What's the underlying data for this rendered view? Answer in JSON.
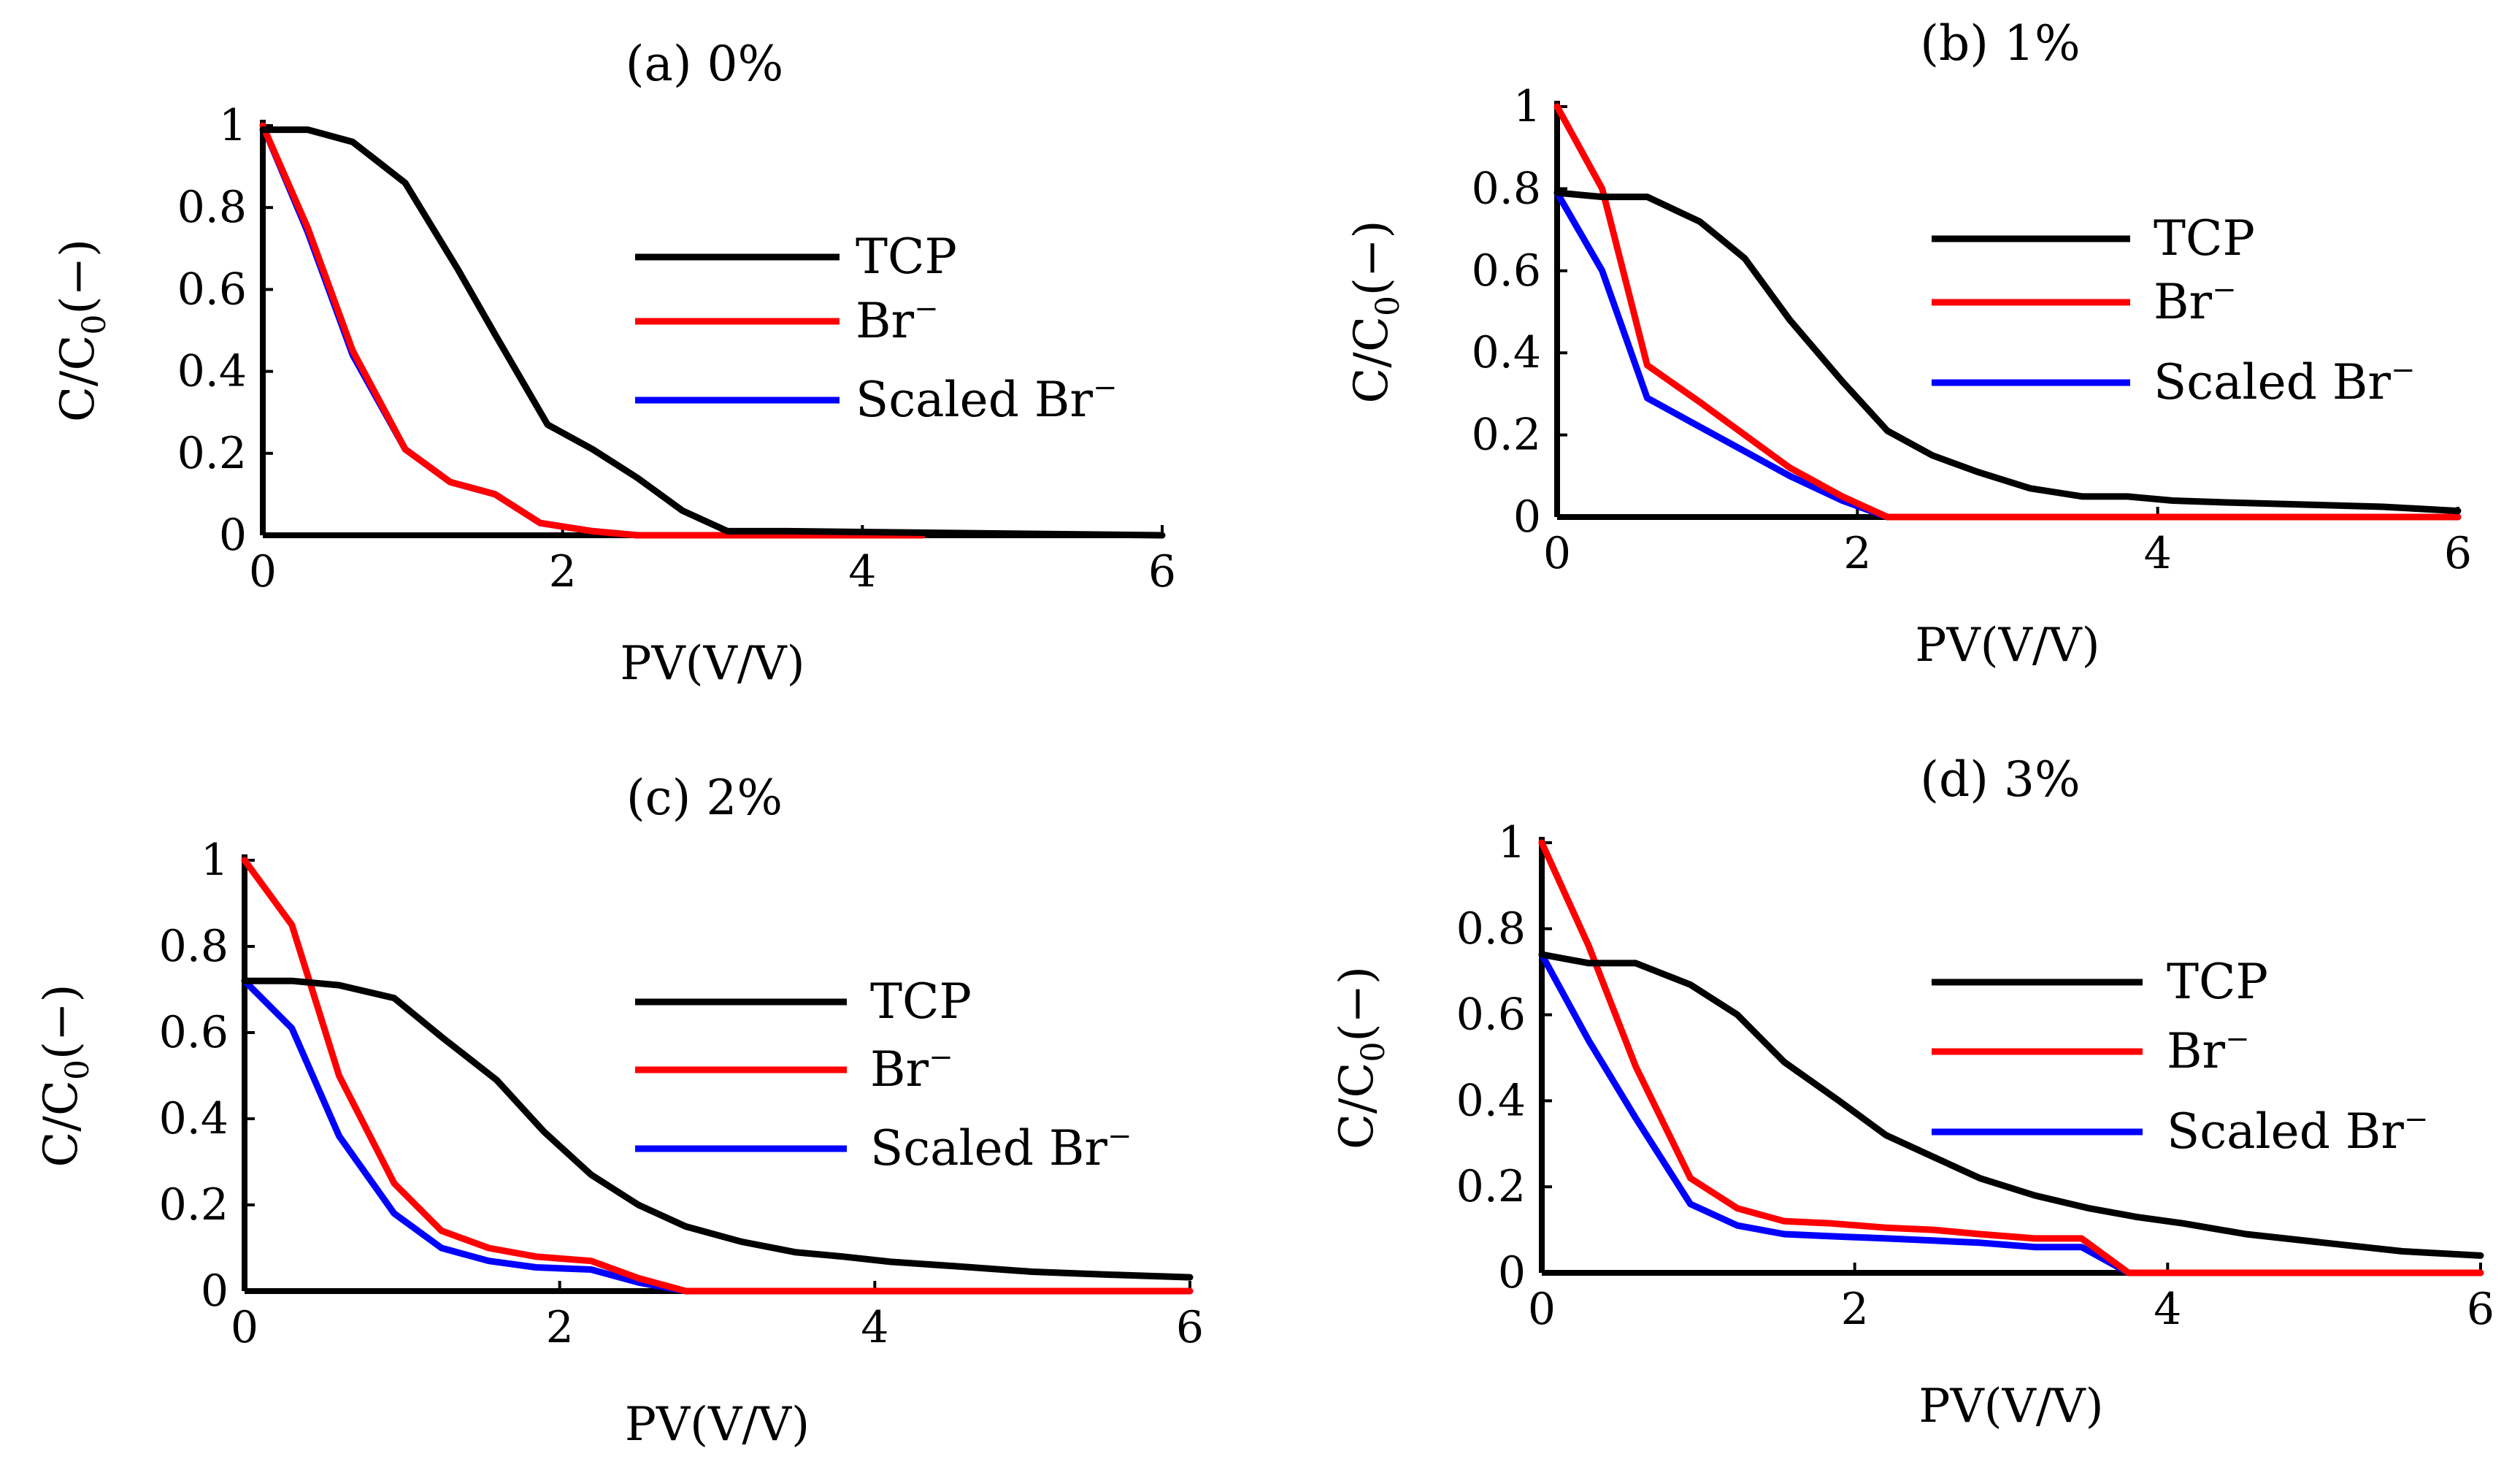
{
  "chart_data": [
    {
      "type": "line",
      "title": "(a)  0%",
      "xlabel": "PV(V/V)",
      "ylabel": "C/C0(−)",
      "xlim": [
        0,
        6
      ],
      "ylim": [
        0,
        1
      ],
      "xticks": [
        "0",
        "2",
        "4",
        "6"
      ],
      "yticks": [
        "0",
        "0.2",
        "0.4",
        "0.6",
        "0.8",
        "1"
      ],
      "legend_position": "right",
      "series": [
        {
          "name": "TCP",
          "color": "#000000",
          "x": [
            0,
            0.3,
            0.6,
            0.95,
            1.3,
            1.55,
            1.9,
            2.2,
            2.5,
            2.8,
            3.1,
            3.5,
            6.0
          ],
          "y": [
            0.99,
            0.99,
            0.96,
            0.86,
            0.65,
            0.49,
            0.27,
            0.21,
            0.14,
            0.06,
            0.01,
            0.01,
            0.0
          ]
        },
        {
          "name": "Br−",
          "color": "#ff0000",
          "x": [
            0,
            0.3,
            0.6,
            0.95,
            1.25,
            1.55,
            1.85,
            2.2,
            2.5,
            4.4
          ],
          "y": [
            1.0,
            0.75,
            0.45,
            0.21,
            0.13,
            0.1,
            0.03,
            0.01,
            0.0,
            0.0
          ]
        },
        {
          "name": "Scaled Br−",
          "color": "#0000ff",
          "x": [
            0,
            0.3,
            0.6,
            0.95,
            1.25,
            1.55,
            1.85,
            2.2,
            2.5,
            4.4
          ],
          "y": [
            1.0,
            0.74,
            0.44,
            0.21,
            0.13,
            0.1,
            0.03,
            0.01,
            0.0,
            0.0
          ]
        }
      ]
    },
    {
      "type": "line",
      "title": "(b)  1%",
      "xlabel": "PV(V/V)",
      "ylabel": "C/C0(−)",
      "xlim": [
        0,
        6
      ],
      "ylim": [
        0,
        1
      ],
      "xticks": [
        "0",
        "2",
        "4",
        "6"
      ],
      "yticks": [
        "0",
        "0.2",
        "0.4",
        "0.6",
        "0.8",
        "1"
      ],
      "legend_position": "right",
      "series": [
        {
          "name": "TCP",
          "color": "#000000",
          "x": [
            0,
            0.3,
            0.6,
            0.95,
            1.25,
            1.55,
            1.9,
            2.2,
            2.5,
            2.8,
            3.15,
            3.5,
            3.8,
            4.1,
            4.5,
            5.0,
            5.5,
            6.0
          ],
          "y": [
            0.79,
            0.78,
            0.78,
            0.72,
            0.63,
            0.48,
            0.33,
            0.21,
            0.15,
            0.11,
            0.07,
            0.05,
            0.05,
            0.04,
            0.035,
            0.03,
            0.025,
            0.015
          ]
        },
        {
          "name": "Br−",
          "color": "#ff0000",
          "x": [
            0,
            0.3,
            0.6,
            0.95,
            1.25,
            1.55,
            1.9,
            2.2,
            6.0
          ],
          "y": [
            1.0,
            0.8,
            0.37,
            0.28,
            0.2,
            0.12,
            0.05,
            0.0,
            0.0
          ]
        },
        {
          "name": "Scaled Br−",
          "color": "#0000ff",
          "x": [
            0,
            0.3,
            0.6,
            0.95,
            1.25,
            1.55,
            1.9,
            2.2,
            6.0
          ],
          "y": [
            0.79,
            0.6,
            0.29,
            0.22,
            0.16,
            0.1,
            0.04,
            0.0,
            0.0
          ]
        }
      ]
    },
    {
      "type": "line",
      "title": "(c)  2%",
      "xlabel": "PV(V/V)",
      "ylabel": "C/C0(−)",
      "xlim": [
        0,
        6
      ],
      "ylim": [
        0,
        1
      ],
      "xticks": [
        "0",
        "2",
        "4",
        "6"
      ],
      "yticks": [
        "0",
        "0.2",
        "0.4",
        "0.6",
        "0.8",
        "1"
      ],
      "legend_position": "right",
      "series": [
        {
          "name": "TCP",
          "color": "#000000",
          "x": [
            0,
            0.3,
            0.6,
            0.95,
            1.25,
            1.6,
            1.9,
            2.2,
            2.5,
            2.8,
            3.15,
            3.5,
            3.8,
            4.1,
            4.5,
            5.0,
            5.5,
            6.0
          ],
          "y": [
            0.72,
            0.72,
            0.71,
            0.68,
            0.59,
            0.49,
            0.37,
            0.27,
            0.2,
            0.15,
            0.115,
            0.09,
            0.08,
            0.068,
            0.058,
            0.045,
            0.038,
            0.032
          ]
        },
        {
          "name": "Br−",
          "color": "#ff0000",
          "x": [
            0,
            0.3,
            0.6,
            0.95,
            1.25,
            1.55,
            1.85,
            2.2,
            2.5,
            2.8,
            6.0
          ],
          "y": [
            1.0,
            0.85,
            0.5,
            0.25,
            0.14,
            0.1,
            0.08,
            0.07,
            0.03,
            0.0,
            0.0
          ]
        },
        {
          "name": "Scaled Br−",
          "color": "#0000ff",
          "x": [
            0,
            0.3,
            0.6,
            0.95,
            1.25,
            1.55,
            1.85,
            2.2,
            2.5,
            2.8,
            6.0
          ],
          "y": [
            0.72,
            0.61,
            0.36,
            0.18,
            0.1,
            0.07,
            0.055,
            0.05,
            0.02,
            0.0,
            0.0
          ]
        }
      ]
    },
    {
      "type": "line",
      "title": "(d)  3%",
      "xlabel": "PV(V/V)",
      "ylabel": "C/C0(−)",
      "xlim": [
        0,
        6
      ],
      "ylim": [
        0,
        1
      ],
      "xticks": [
        "0",
        "2",
        "4",
        "6"
      ],
      "yticks": [
        "0",
        "0.2",
        "0.4",
        "0.6",
        "0.8",
        "1"
      ],
      "legend_position": "right",
      "series": [
        {
          "name": "TCP",
          "color": "#000000",
          "x": [
            0,
            0.3,
            0.6,
            0.95,
            1.25,
            1.55,
            1.9,
            2.2,
            2.5,
            2.8,
            3.15,
            3.5,
            3.8,
            4.1,
            4.5,
            5.0,
            5.5,
            6.0
          ],
          "y": [
            0.74,
            0.72,
            0.72,
            0.67,
            0.6,
            0.49,
            0.4,
            0.32,
            0.27,
            0.22,
            0.18,
            0.15,
            0.13,
            0.115,
            0.09,
            0.07,
            0.05,
            0.04
          ]
        },
        {
          "name": "Br−",
          "color": "#ff0000",
          "x": [
            0,
            0.3,
            0.6,
            0.95,
            1.25,
            1.55,
            1.85,
            2.2,
            2.5,
            2.8,
            3.15,
            3.45,
            3.75,
            6.0
          ],
          "y": [
            1.0,
            0.76,
            0.48,
            0.22,
            0.15,
            0.12,
            0.115,
            0.105,
            0.1,
            0.09,
            0.08,
            0.08,
            0.0,
            0.0
          ]
        },
        {
          "name": "Scaled Br−",
          "color": "#0000ff",
          "x": [
            0,
            0.3,
            0.6,
            0.95,
            1.25,
            1.55,
            1.85,
            2.2,
            2.5,
            2.8,
            3.15,
            3.45,
            3.75,
            6.0
          ],
          "y": [
            0.74,
            0.54,
            0.36,
            0.16,
            0.11,
            0.09,
            0.085,
            0.08,
            0.075,
            0.07,
            0.06,
            0.06,
            0.0,
            0.0
          ]
        }
      ]
    }
  ]
}
